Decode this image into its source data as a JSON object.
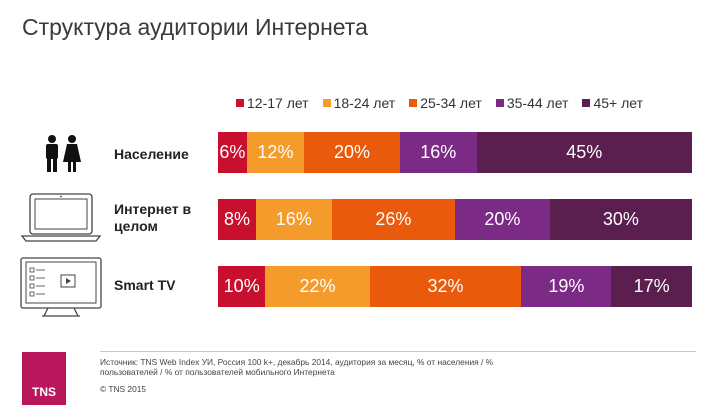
{
  "chart_data": {
    "type": "bar",
    "orientation": "horizontal",
    "stacked": true,
    "percent_stacked": true,
    "title": "Структура аудитории Интернета",
    "categories": [
      "Население",
      "Интернет в целом",
      "Smart TV"
    ],
    "series": [
      {
        "name": "12-17 лет",
        "color": "#c8102e",
        "values": [
          6,
          8,
          10
        ]
      },
      {
        "name": "18-24 лет",
        "color": "#f59b2b",
        "values": [
          12,
          16,
          22
        ]
      },
      {
        "name": "25-34 лет",
        "color": "#ea5a0c",
        "values": [
          20,
          26,
          32
        ]
      },
      {
        "name": "35-44 лет",
        "color": "#7b2a86",
        "values": [
          16,
          20,
          19
        ]
      },
      {
        "name": "45+ лет",
        "color": "#5a1f4f",
        "values": [
          45,
          30,
          17
        ]
      }
    ],
    "legend_position": "top"
  },
  "row_labels": [
    {
      "line1": "Население",
      "line2": ""
    },
    {
      "line1": "Интернет в",
      "line2": "целом"
    },
    {
      "line1": "Smart TV",
      "line2": ""
    }
  ],
  "icons": [
    "people-icon",
    "laptop-icon",
    "smart-tv-icon"
  ],
  "footer": {
    "source": "Источник: TNS Web Index УИ, Россия 100 k+, декабрь 2014, аудитория за месяц, % от населения / %  пользователей / % от пользователей мобильного Интернета",
    "copyright": "© TNS 2015",
    "logo_text": "TNS"
  }
}
